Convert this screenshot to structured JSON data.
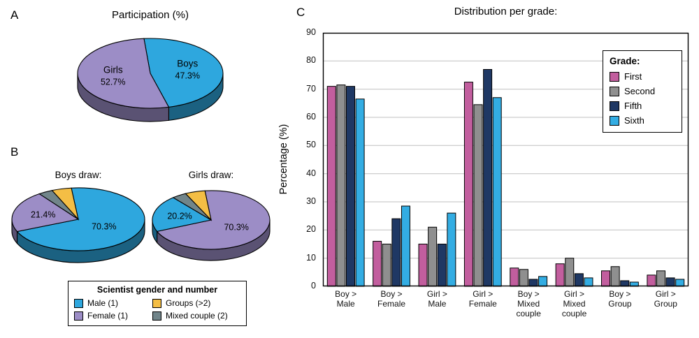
{
  "panels": {
    "a": "A",
    "b": "B",
    "c": "C"
  },
  "panelB": {
    "legend": {
      "title": "Scientist gender and number",
      "items": [
        {
          "label": "Male (1)",
          "color": "#2EA7DE"
        },
        {
          "label": "Female (1)",
          "color": "#9C8DC6"
        },
        {
          "label": "Groups (>2)",
          "color": "#F4BE45"
        },
        {
          "label": "Mixed couple (2)",
          "color": "#71858A"
        }
      ]
    }
  },
  "chart_data": [
    {
      "id": "participation-pie",
      "type": "pie",
      "title": "Participation (%)",
      "start_angle": 95,
      "slices": [
        {
          "label": "Boys",
          "value": 47.3,
          "display": "47.3%",
          "color": "#2EA7DE"
        },
        {
          "label": "Girls",
          "value": 52.7,
          "display": "52.7%",
          "color": "#9C8DC6"
        }
      ]
    },
    {
      "id": "boys-draw-pie",
      "type": "pie",
      "title": "Boys draw:",
      "start_angle": 96,
      "slices": [
        {
          "label": "Male (1)",
          "value": 70.3,
          "display": "70.3%",
          "color": "#2EA7DE",
          "label_r": 0.45
        },
        {
          "label": "Female (1)",
          "value": 21.4,
          "display": "21.4%",
          "color": "#9C8DC6",
          "label_r": 0.55
        },
        {
          "label": "Mixed couple (2)",
          "value": 3.5,
          "display": "",
          "color": "#71858A"
        },
        {
          "label": "Groups (>2)",
          "value": 4.8,
          "display": "",
          "color": "#F4BE45"
        }
      ]
    },
    {
      "id": "girls-draw-pie",
      "type": "pie",
      "title": "Girls draw:",
      "start_angle": 96,
      "slices": [
        {
          "label": "Female (1)",
          "value": 70.3,
          "display": "70.3%",
          "color": "#9C8DC6",
          "label_r": 0.5
        },
        {
          "label": "Male (1)",
          "value": 20.2,
          "display": "20.2%",
          "color": "#2EA7DE",
          "label_r": 0.55
        },
        {
          "label": "Mixed couple (2)",
          "value": 4.0,
          "display": "",
          "color": "#71858A"
        },
        {
          "label": "Groups (>2)",
          "value": 5.5,
          "display": "",
          "color": "#F4BE45"
        }
      ]
    },
    {
      "id": "grade-bars",
      "type": "bar",
      "title": "Distribution per grade:",
      "ylabel": "Percentage (%)",
      "ylim": [
        0,
        90
      ],
      "ytick_step": 10,
      "grid": true,
      "legend_title": "Grade:",
      "legend_position": "top-right",
      "categories": [
        "Boy >\nMale",
        "Boy >\nFemale",
        "Girl >\nMale",
        "Girl >\nFemale",
        "Boy >\nMixed\ncouple",
        "Girl >\nMixed\ncouple",
        "Boy >\nGroup",
        "Girl >\nGroup"
      ],
      "series": [
        {
          "name": "First",
          "color": "#C25E9E",
          "values": [
            71,
            16,
            15,
            72.5,
            6.5,
            8,
            5.5,
            4
          ]
        },
        {
          "name": "Second",
          "color": "#8F8F8F",
          "values": [
            71.5,
            15,
            21,
            64.5,
            6,
            10,
            7,
            5.5
          ]
        },
        {
          "name": "Fifth",
          "color": "#1F3864",
          "values": [
            71,
            24,
            15,
            77,
            2.5,
            4.5,
            2,
            3
          ]
        },
        {
          "name": "Sixth",
          "color": "#33ADE3",
          "values": [
            66.5,
            28.5,
            26,
            67,
            3.5,
            3,
            1.5,
            2.5
          ]
        }
      ]
    }
  ]
}
